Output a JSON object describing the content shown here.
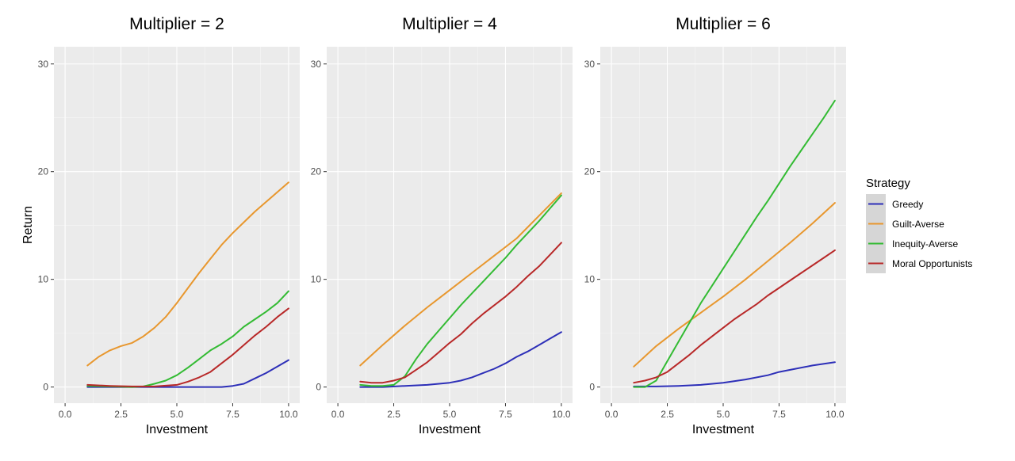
{
  "chart_data": {
    "type": "line",
    "facet_by": "Multiplier",
    "x_label": "Investment",
    "y_label": "Return",
    "xlim": [
      0,
      10
    ],
    "ylim": [
      0,
      30
    ],
    "x_ticks": [
      0,
      2.5,
      5,
      7.5,
      10
    ],
    "x_tick_labels": [
      "0.0",
      "2.5",
      "5.0",
      "7.5",
      "10.0"
    ],
    "y_ticks": [
      0,
      10,
      20,
      30
    ],
    "y_tick_labels": [
      "0",
      "10",
      "20",
      "30"
    ],
    "grid": true,
    "legend": {
      "title": "Strategy",
      "position": "right",
      "entries": [
        {
          "name": "Greedy",
          "color": "#2d2fb8"
        },
        {
          "name": "Guilt-Averse",
          "color": "#e8972e"
        },
        {
          "name": "Inequity-Averse",
          "color": "#33bb33"
        },
        {
          "name": "Moral Opportunists",
          "color": "#b82828"
        }
      ]
    },
    "panels": [
      {
        "title": "Multiplier = 2",
        "series": [
          {
            "name": "Greedy",
            "x": [
              1,
              2,
              3,
              4,
              5,
              6,
              7,
              7.5,
              8,
              8.5,
              9,
              9.5,
              10
            ],
            "y": [
              0,
              0,
              0,
              0,
              0,
              0,
              0,
              0.1,
              0.3,
              0.8,
              1.3,
              1.9,
              2.5
            ]
          },
          {
            "name": "Guilt-Averse",
            "x": [
              1,
              1.5,
              2,
              2.5,
              3,
              3.5,
              4,
              4.5,
              5,
              5.5,
              6,
              6.5,
              7,
              7.5,
              8,
              8.5,
              9,
              9.5,
              10
            ],
            "y": [
              2.0,
              2.8,
              3.4,
              3.8,
              4.1,
              4.7,
              5.5,
              6.5,
              7.8,
              9.2,
              10.6,
              11.9,
              13.2,
              14.3,
              15.3,
              16.3,
              17.2,
              18.1,
              19.0
            ]
          },
          {
            "name": "Inequity-Averse",
            "x": [
              1,
              2,
              3,
              3.5,
              4,
              4.5,
              5,
              5.5,
              6,
              6.5,
              7,
              7.5,
              8,
              8.5,
              9,
              9.5,
              10
            ],
            "y": [
              0.1,
              0.05,
              0,
              0.05,
              0.3,
              0.6,
              1.1,
              1.8,
              2.6,
              3.4,
              4.0,
              4.7,
              5.6,
              6.3,
              7.0,
              7.8,
              8.9
            ]
          },
          {
            "name": "Moral Opportunists",
            "x": [
              1,
              2,
              3,
              4,
              5,
              5.5,
              6,
              6.5,
              7,
              7.5,
              8,
              8.5,
              9,
              9.5,
              10
            ],
            "y": [
              0.2,
              0.1,
              0.05,
              0.05,
              0.2,
              0.5,
              0.9,
              1.4,
              2.2,
              3.0,
              3.9,
              4.8,
              5.6,
              6.5,
              7.3
            ]
          }
        ]
      },
      {
        "title": "Multiplier = 4",
        "series": [
          {
            "name": "Greedy",
            "x": [
              1,
              2,
              3,
              4,
              5,
              5.5,
              6,
              6.5,
              7,
              7.5,
              8,
              8.5,
              9,
              9.5,
              10
            ],
            "y": [
              0,
              0,
              0.1,
              0.2,
              0.4,
              0.6,
              0.9,
              1.3,
              1.7,
              2.2,
              2.8,
              3.3,
              3.9,
              4.5,
              5.1
            ]
          },
          {
            "name": "Guilt-Averse",
            "x": [
              1,
              2,
              3,
              4,
              5,
              6,
              7,
              8,
              9,
              10
            ],
            "y": [
              2.0,
              3.9,
              5.7,
              7.4,
              9.0,
              10.6,
              12.2,
              13.8,
              15.9,
              18.0
            ]
          },
          {
            "name": "Inequity-Averse",
            "x": [
              1,
              1.5,
              2,
              2.5,
              3,
              3.5,
              4,
              4.5,
              5,
              5.5,
              6,
              6.5,
              7,
              7.5,
              8,
              8.5,
              9,
              9.5,
              10
            ],
            "y": [
              0.2,
              0.1,
              0.1,
              0.2,
              1.0,
              2.6,
              4.0,
              5.2,
              6.4,
              7.6,
              8.7,
              9.8,
              10.9,
              12.0,
              13.2,
              14.3,
              15.4,
              16.6,
              17.8
            ]
          },
          {
            "name": "Moral Opportunists",
            "x": [
              1,
              1.5,
              2,
              2.5,
              3,
              3.5,
              4,
              4.5,
              5,
              5.5,
              6,
              6.5,
              7,
              7.5,
              8,
              8.5,
              9,
              9.5,
              10
            ],
            "y": [
              0.5,
              0.4,
              0.4,
              0.6,
              0.9,
              1.6,
              2.3,
              3.2,
              4.1,
              4.9,
              5.9,
              6.8,
              7.6,
              8.4,
              9.3,
              10.3,
              11.2,
              12.3,
              13.4
            ]
          }
        ]
      },
      {
        "title": "Multiplier = 6",
        "series": [
          {
            "name": "Greedy",
            "x": [
              1,
              2,
              3,
              4,
              5,
              6,
              7,
              7.5,
              8,
              9,
              10
            ],
            "y": [
              0.05,
              0.05,
              0.1,
              0.2,
              0.4,
              0.7,
              1.1,
              1.4,
              1.6,
              2.0,
              2.3
            ]
          },
          {
            "name": "Guilt-Averse",
            "x": [
              1,
              2,
              3,
              4,
              5,
              6,
              7,
              8,
              9,
              10
            ],
            "y": [
              1.9,
              3.8,
              5.4,
              6.9,
              8.4,
              10.0,
              11.7,
              13.4,
              15.2,
              17.1
            ]
          },
          {
            "name": "Inequity-Averse",
            "x": [
              1,
              1.5,
              2,
              2.5,
              3,
              3.5,
              4,
              4.5,
              5,
              5.5,
              6,
              6.5,
              7,
              7.5,
              8,
              8.5,
              9,
              9.5,
              10
            ],
            "y": [
              0,
              0,
              0.6,
              2.4,
              4.2,
              6.0,
              7.8,
              9.4,
              11.0,
              12.6,
              14.2,
              15.8,
              17.3,
              18.9,
              20.5,
              22.0,
              23.5,
              25.0,
              26.6
            ]
          },
          {
            "name": "Moral Opportunists",
            "x": [
              1,
              1.5,
              2,
              2.5,
              3,
              3.5,
              4,
              4.5,
              5,
              5.5,
              6,
              6.5,
              7,
              7.5,
              8,
              8.5,
              9,
              9.5,
              10
            ],
            "y": [
              0.4,
              0.6,
              0.9,
              1.4,
              2.2,
              3.0,
              3.9,
              4.7,
              5.5,
              6.3,
              7.0,
              7.7,
              8.5,
              9.2,
              9.9,
              10.6,
              11.3,
              12.0,
              12.7
            ]
          }
        ]
      }
    ]
  }
}
